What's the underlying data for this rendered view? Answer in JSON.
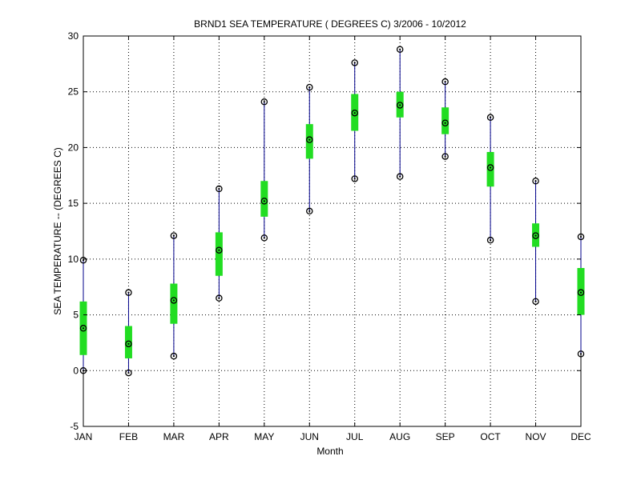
{
  "chart_data": {
    "type": "boxplot",
    "title": "BRND1  SEA TEMPERATURE ( DEGREES C) 3/2006 - 10/2012",
    "xlabel": "Month",
    "ylabel": "SEA TEMPERATURE -- (DEGREES C)",
    "categories": [
      "JAN",
      "FEB",
      "MAR",
      "APR",
      "MAY",
      "JUN",
      "JUL",
      "AUG",
      "SEP",
      "OCT",
      "NOV",
      "DEC"
    ],
    "ylim": [
      -5,
      30
    ],
    "yticks": [
      -5,
      0,
      5,
      10,
      15,
      20,
      25,
      30
    ],
    "grid": true,
    "series": [
      {
        "min": 0.0,
        "q1": 1.4,
        "median": 3.8,
        "q3": 6.2,
        "max": 9.9
      },
      {
        "min": -0.2,
        "q1": 1.1,
        "median": 2.4,
        "q3": 4.0,
        "max": 7.0
      },
      {
        "min": 1.3,
        "q1": 4.2,
        "median": 6.3,
        "q3": 7.8,
        "max": 12.1
      },
      {
        "min": 6.5,
        "q1": 8.5,
        "median": 10.8,
        "q3": 12.4,
        "max": 16.3
      },
      {
        "min": 11.9,
        "q1": 13.8,
        "median": 15.2,
        "q3": 17.0,
        "max": 24.1
      },
      {
        "min": 14.3,
        "q1": 19.0,
        "median": 20.7,
        "q3": 22.1,
        "max": 25.4
      },
      {
        "min": 17.2,
        "q1": 21.5,
        "median": 23.1,
        "q3": 24.8,
        "max": 27.6
      },
      {
        "min": 17.4,
        "q1": 22.7,
        "median": 23.8,
        "q3": 25.0,
        "max": 28.8
      },
      {
        "min": 19.2,
        "q1": 21.2,
        "median": 22.2,
        "q3": 23.6,
        "max": 25.9
      },
      {
        "min": 11.7,
        "q1": 16.5,
        "median": 18.2,
        "q3": 19.6,
        "max": 22.7
      },
      {
        "min": 6.2,
        "q1": 11.1,
        "median": 12.1,
        "q3": 13.2,
        "max": 17.0
      },
      {
        "min": 1.5,
        "q1": 5.0,
        "median": 7.0,
        "q3": 9.2,
        "max": 12.0
      }
    ],
    "colors": {
      "whisker": "#00008b",
      "box": "#22dd22",
      "marker": "#000000",
      "grid": "#000000",
      "axis": "#000000"
    }
  }
}
